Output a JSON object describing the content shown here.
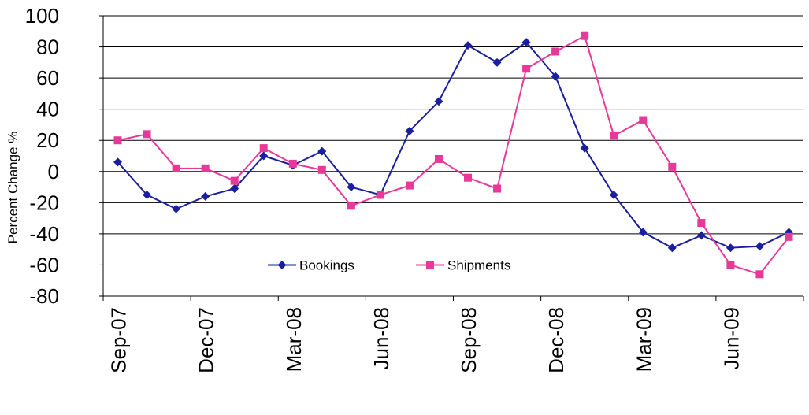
{
  "chart_data": {
    "type": "line",
    "title": "",
    "xlabel": "",
    "ylabel": "Percent Change %",
    "ylim": [
      -80,
      100
    ],
    "ytick_step": 20,
    "grid": "horizontal",
    "legend_position": "bottom-center",
    "x": [
      "Sep-07",
      "Oct-07",
      "Nov-07",
      "Dec-07",
      "Jan-08",
      "Feb-08",
      "Mar-08",
      "Apr-08",
      "May-08",
      "Jun-08",
      "Jul-08",
      "Aug-08",
      "Sep-08",
      "Oct-08",
      "Nov-08",
      "Dec-08",
      "Jan-09",
      "Feb-09",
      "Mar-09",
      "Apr-09",
      "May-09",
      "Jun-09",
      "Jul-09",
      "Aug-09"
    ],
    "x_tick_labels": [
      "Sep-07",
      "Dec-07",
      "Mar-08",
      "Jun-08",
      "Sep-08",
      "Dec-08",
      "Mar-09",
      "Jun-09"
    ],
    "series": [
      {
        "name": "Bookings",
        "color": "#1a1f9c",
        "marker": "diamond",
        "values": [
          6,
          -15,
          -24,
          -16,
          -11,
          10,
          4,
          13,
          -10,
          -15,
          26,
          45,
          81,
          70,
          83,
          61,
          15,
          -15,
          -39,
          -49,
          -41,
          -49,
          -48,
          -39
        ]
      },
      {
        "name": "Shipments",
        "color": "#e8399a",
        "marker": "square",
        "values": [
          20,
          24,
          2,
          2,
          -6,
          15,
          5,
          1,
          -22,
          -15,
          -9,
          8,
          -4,
          -11,
          66,
          77,
          87,
          23,
          33,
          3,
          -33,
          -60,
          -66,
          -42
        ]
      }
    ]
  }
}
